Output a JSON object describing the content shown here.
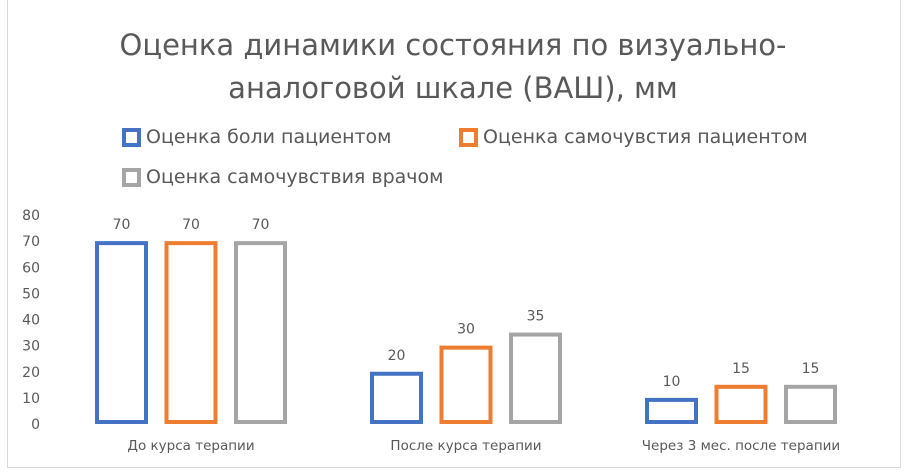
{
  "chart_data": {
    "type": "bar",
    "title": "Оценка динамики состояния по визуально-аналоговой шкале (ВАШ), мм",
    "title_lines": [
      "Оценка динамики состояния по визуально-",
      "аналоговой шкале (ВАШ), мм"
    ],
    "categories": [
      "До курса терапии",
      "После курса терапии",
      "Через 3 мес. после терапии"
    ],
    "series": [
      {
        "name": "Оценка боли пациентом",
        "values": [
          70,
          20,
          10
        ],
        "color": "#4472C4"
      },
      {
        "name": "Оценка самочувстия пациентом",
        "values": [
          70,
          30,
          15
        ],
        "color": "#ED7D31"
      },
      {
        "name": "Оценка самочувствия врачом",
        "values": [
          70,
          35,
          15
        ],
        "color": "#A5A5A5"
      }
    ],
    "ylim": [
      0,
      80
    ],
    "yticks": [
      0,
      10,
      20,
      30,
      40,
      50,
      60,
      70,
      80
    ],
    "bar_style": "outline",
    "data_labels": true,
    "grid": false,
    "legend_position": "top"
  }
}
